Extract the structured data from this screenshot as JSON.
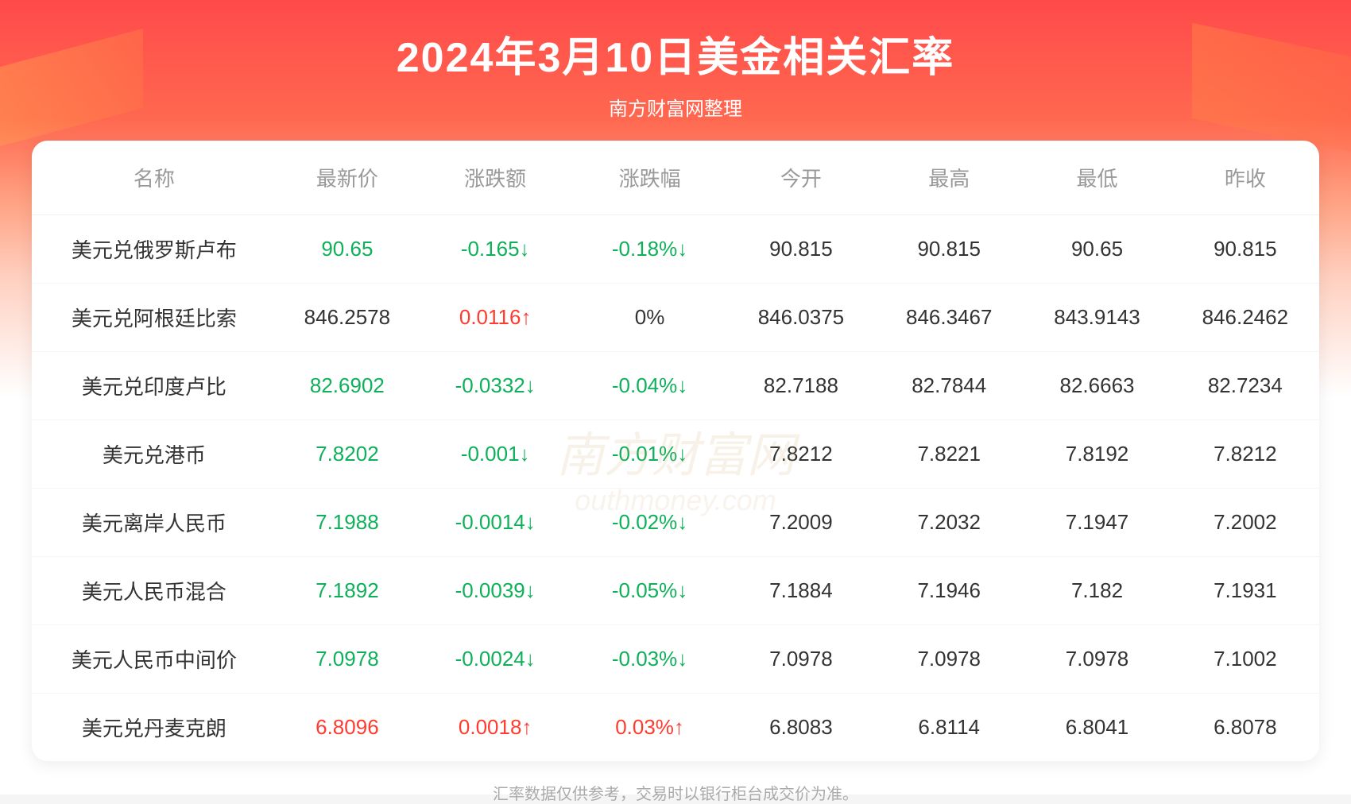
{
  "header": {
    "title": "2024年3月10日美金相关汇率",
    "subtitle": "南方财富网整理"
  },
  "table": {
    "type": "table",
    "columns": [
      {
        "key": "name",
        "label": "名称",
        "header_color": "#999999"
      },
      {
        "key": "price",
        "label": "最新价",
        "header_color": "#999999"
      },
      {
        "key": "change",
        "label": "涨跌额",
        "header_color": "#999999"
      },
      {
        "key": "pct",
        "label": "涨跌幅",
        "header_color": "#999999"
      },
      {
        "key": "open",
        "label": "今开",
        "header_color": "#999999"
      },
      {
        "key": "high",
        "label": "最高",
        "header_color": "#999999"
      },
      {
        "key": "low",
        "label": "最低",
        "header_color": "#999999"
      },
      {
        "key": "prev",
        "label": "昨收",
        "header_color": "#999999"
      }
    ],
    "rows": [
      {
        "name": "美元兑俄罗斯卢布",
        "price": "90.65",
        "price_dir": "down",
        "change": "-0.165↓",
        "change_dir": "down",
        "pct": "-0.18%↓",
        "pct_dir": "down",
        "open": "90.815",
        "high": "90.815",
        "low": "90.65",
        "prev": "90.815"
      },
      {
        "name": "美元兑阿根廷比索",
        "price": "846.2578",
        "price_dir": "neutral",
        "change": "0.0116↑",
        "change_dir": "up",
        "pct": "0%",
        "pct_dir": "neutral",
        "open": "846.0375",
        "high": "846.3467",
        "low": "843.9143",
        "prev": "846.2462"
      },
      {
        "name": "美元兑印度卢比",
        "price": "82.6902",
        "price_dir": "down",
        "change": "-0.0332↓",
        "change_dir": "down",
        "pct": "-0.04%↓",
        "pct_dir": "down",
        "open": "82.7188",
        "high": "82.7844",
        "low": "82.6663",
        "prev": "82.7234"
      },
      {
        "name": "美元兑港币",
        "price": "7.8202",
        "price_dir": "down",
        "change": "-0.001↓",
        "change_dir": "down",
        "pct": "-0.01%↓",
        "pct_dir": "down",
        "open": "7.8212",
        "high": "7.8221",
        "low": "7.8192",
        "prev": "7.8212"
      },
      {
        "name": "美元离岸人民币",
        "price": "7.1988",
        "price_dir": "down",
        "change": "-0.0014↓",
        "change_dir": "down",
        "pct": "-0.02%↓",
        "pct_dir": "down",
        "open": "7.2009",
        "high": "7.2032",
        "low": "7.1947",
        "prev": "7.2002"
      },
      {
        "name": "美元人民币混合",
        "price": "7.1892",
        "price_dir": "down",
        "change": "-0.0039↓",
        "change_dir": "down",
        "pct": "-0.05%↓",
        "pct_dir": "down",
        "open": "7.1884",
        "high": "7.1946",
        "low": "7.182",
        "prev": "7.1931"
      },
      {
        "name": "美元人民币中间价",
        "price": "7.0978",
        "price_dir": "down",
        "change": "-0.0024↓",
        "change_dir": "down",
        "pct": "-0.03%↓",
        "pct_dir": "down",
        "open": "7.0978",
        "high": "7.0978",
        "low": "7.0978",
        "prev": "7.1002"
      },
      {
        "name": "美元兑丹麦克朗",
        "price": "6.8096",
        "price_dir": "up",
        "change": "0.0018↑",
        "change_dir": "up",
        "pct": "0.03%↑",
        "pct_dir": "up",
        "open": "6.8083",
        "high": "6.8114",
        "low": "6.8041",
        "prev": "6.8078"
      }
    ],
    "colors": {
      "down": "#0fb05a",
      "up": "#ff3b30",
      "neutral": "#333333",
      "header_text": "#999999",
      "cell_text": "#333333",
      "row_divider": "#f5f5f5",
      "background": "#ffffff"
    },
    "font_size": 26,
    "header_font_size": 26,
    "border_radius": 20
  },
  "watermark": {
    "main": "南方财富网",
    "sub": "outhmoney.com"
  },
  "footer": {
    "text": "汇率数据仅供参考，交易时以银行柜台成交价为准。"
  },
  "background": {
    "gradient_top": "#ff4a4a",
    "gradient_mid": "#ff6850",
    "gradient_bottom": "#ffffff"
  }
}
